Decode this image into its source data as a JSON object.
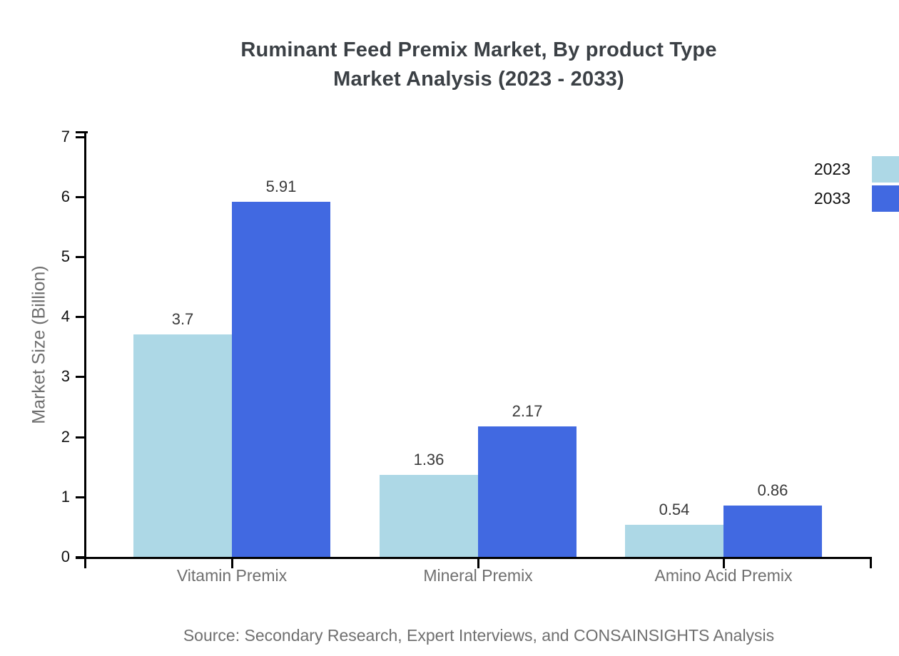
{
  "header": {
    "title_line1": "Ruminant Feed Premix Market, By product Type",
    "title_line2": "Market Analysis (2023 - 2033)"
  },
  "chart_data": {
    "type": "bar",
    "title": "Ruminant Feed Premix Market, By product Type Market Analysis (2023 - 2033)",
    "categories": [
      "Vitamin Premix",
      "Mineral Premix",
      "Amino Acid Premix"
    ],
    "series": [
      {
        "name": "2023",
        "color": "#ADD8E6",
        "values": [
          3.7,
          1.36,
          0.54
        ]
      },
      {
        "name": "2033",
        "color": "#4169E1",
        "values": [
          5.91,
          2.17,
          0.86
        ]
      }
    ],
    "value_labels": [
      [
        "3.7",
        "1.36",
        "0.54"
      ],
      [
        "5.91",
        "2.17",
        "0.86"
      ]
    ],
    "xlabel": "",
    "ylabel": "Market Size (Billion)",
    "ylim": [
      0,
      7
    ],
    "yticks": [
      0,
      1,
      2,
      3,
      4,
      5,
      6,
      7
    ],
    "grid": false,
    "legend_position": "top-right"
  },
  "footer": {
    "source": "Source: Secondary Research, Expert Interviews, and CONSAINSIGHTS Analysis"
  },
  "colors": {
    "series_2023": "#ADD8E6",
    "series_2033": "#4169E1",
    "axis": "#000000",
    "title_text": "#3b4045",
    "muted_text": "#6f6f6f",
    "tick_text": "#111111"
  }
}
